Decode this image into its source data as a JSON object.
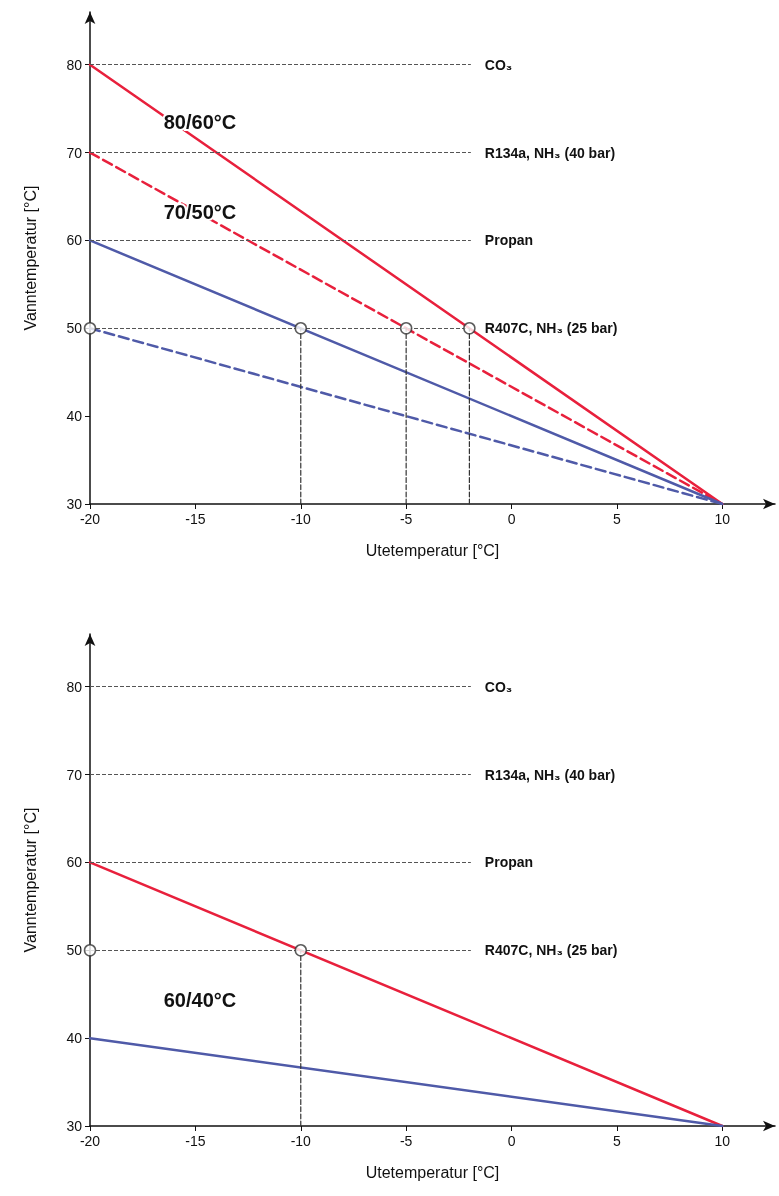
{
  "chart_data": [
    {
      "type": "line",
      "xlabel": "Utetemperatur [°C]",
      "ylabel": "Vanntemperatur [°C]",
      "xlim": [
        -20,
        12.5
      ],
      "ylim": [
        30,
        86
      ],
      "xticks": [
        -20,
        -15,
        -10,
        -5,
        0,
        5,
        10
      ],
      "yticks": [
        30,
        40,
        50,
        60,
        70,
        80
      ],
      "grid": false,
      "series": [
        {
          "type": "line",
          "color": "#e8203c",
          "line_style": "solid",
          "marker": "none",
          "x": [
            -20,
            10
          ],
          "values": [
            80,
            30
          ]
        },
        {
          "type": "line",
          "color": "#e8203c",
          "line_style": "dashed",
          "marker": "none",
          "x": [
            -20,
            10
          ],
          "values": [
            70,
            30
          ]
        },
        {
          "type": "line",
          "color": "#4f5aa8",
          "line_style": "solid",
          "marker": "none",
          "x": [
            -20,
            10
          ],
          "values": [
            60,
            30
          ]
        },
        {
          "type": "line",
          "color": "#4f5aa8",
          "line_style": "dashed",
          "marker": "none",
          "x": [
            -20,
            10
          ],
          "values": [
            50,
            30
          ]
        },
        {
          "type": "line",
          "color": "#333333",
          "line_style": "dashed",
          "marker": "none",
          "x": [
            -10,
            -10
          ],
          "values": [
            30,
            50
          ]
        },
        {
          "type": "line",
          "color": "#333333",
          "line_style": "dashed",
          "marker": "none",
          "x": [
            -5,
            -5
          ],
          "values": [
            30,
            50
          ]
        },
        {
          "type": "line",
          "color": "#333333",
          "line_style": "dashed",
          "marker": "none",
          "x": [
            -2,
            -2
          ],
          "values": [
            30,
            50
          ]
        },
        {
          "type": "scatter",
          "color": "#333333",
          "marker": "circle",
          "x": [
            -20,
            -10,
            -5,
            -2
          ],
          "values": [
            50,
            50,
            50,
            50
          ]
        }
      ],
      "ref_lines": [
        {
          "axis": "y",
          "value": 80,
          "label": "CO₃",
          "color": "#555555",
          "line_style": "dashed"
        },
        {
          "axis": "y",
          "value": 70,
          "label": "R134a, NH₃ (40 bar)",
          "color": "#555555",
          "line_style": "dashed"
        },
        {
          "axis": "y",
          "value": 60,
          "label": "Propan",
          "color": "#555555",
          "line_style": "dashed"
        },
        {
          "axis": "y",
          "value": 50,
          "label": "R407C, NH₃ (25 bar)",
          "color": "#555555",
          "line_style": "dashed"
        }
      ],
      "annotations": [
        "80/60°C",
        "70/50°C"
      ]
    },
    {
      "type": "line",
      "xlabel": "Utetemperatur [°C]",
      "ylabel": "Vanntemperatur [°C]",
      "xlim": [
        -20,
        12.5
      ],
      "ylim": [
        30,
        86
      ],
      "xticks": [
        -20,
        -15,
        -10,
        -5,
        0,
        5,
        10
      ],
      "yticks": [
        30,
        40,
        50,
        60,
        70,
        80
      ],
      "grid": false,
      "series": [
        {
          "type": "line",
          "color": "#e8203c",
          "line_style": "solid",
          "marker": "none",
          "x": [
            -20,
            10
          ],
          "values": [
            60,
            30
          ]
        },
        {
          "type": "line",
          "color": "#4f5aa8",
          "line_style": "solid",
          "marker": "none",
          "x": [
            -20,
            10
          ],
          "values": [
            40,
            30
          ]
        },
        {
          "type": "line",
          "color": "#333333",
          "line_style": "dashed",
          "marker": "none",
          "x": [
            -10,
            -10
          ],
          "values": [
            30,
            50
          ]
        },
        {
          "type": "scatter",
          "color": "#333333",
          "marker": "circle",
          "x": [
            -20,
            -10
          ],
          "values": [
            50,
            50
          ]
        }
      ],
      "ref_lines": [
        {
          "axis": "y",
          "value": 80,
          "label": "CO₃",
          "color": "#555555",
          "line_style": "dashed"
        },
        {
          "axis": "y",
          "value": 70,
          "label": "R134a, NH₃ (40 bar)",
          "color": "#555555",
          "line_style": "dashed"
        },
        {
          "axis": "y",
          "value": 60,
          "label": "Propan",
          "color": "#555555",
          "line_style": "dashed"
        },
        {
          "axis": "y",
          "value": 50,
          "label": "R407C, NH₃ (25 bar)",
          "color": "#555555",
          "line_style": "dashed"
        }
      ],
      "annotations": [
        "60/40°C"
      ]
    }
  ]
}
